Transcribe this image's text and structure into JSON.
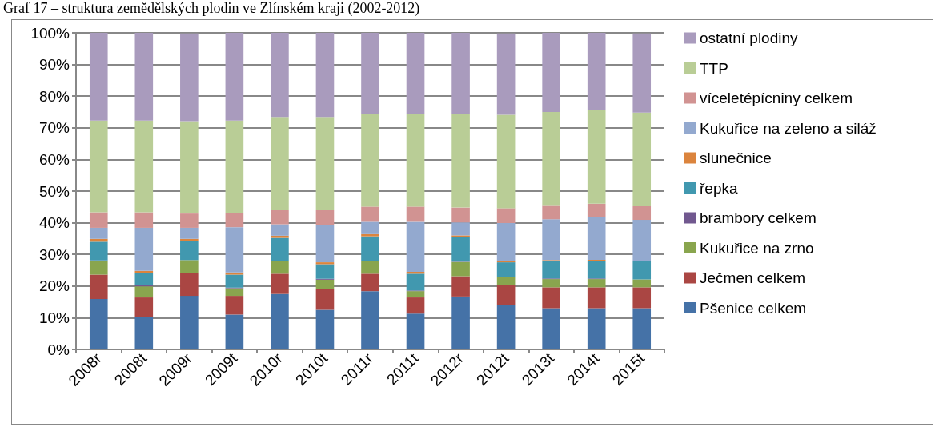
{
  "chart_data": {
    "type": "bar",
    "stacked": true,
    "title": "Graf 17 – struktura zemědělských plodin ve Zlínském kraji (2002-2012)",
    "categories": [
      "2008r",
      "2008t",
      "2009r",
      "2009t",
      "2010r",
      "2010t",
      "2011r",
      "2011t",
      "2012r",
      "2012t",
      "2013t",
      "2014t",
      "2015t"
    ],
    "series": [
      {
        "name": "Pšenice celkem",
        "color": "#4572a7",
        "values": [
          15.9,
          10.2,
          16.9,
          11.0,
          17.5,
          12.5,
          18.4,
          11.3,
          16.7,
          14.1,
          13.0,
          13.0,
          13.0
        ]
      },
      {
        "name": "Ječmen celkem",
        "color": "#aa4643",
        "values": [
          7.7,
          6.2,
          7.2,
          5.9,
          6.4,
          6.6,
          5.5,
          5.1,
          6.4,
          6.2,
          6.6,
          6.6,
          6.6
        ]
      },
      {
        "name": "Kukuřice na zrno",
        "color": "#89a54e",
        "values": [
          4.2,
          3.5,
          4.1,
          2.4,
          3.9,
          2.9,
          3.9,
          2.0,
          4.5,
          2.6,
          2.6,
          2.6,
          2.5
        ]
      },
      {
        "name": "brambory celkem",
        "color": "#71588f",
        "values": [
          0.3,
          0.3,
          null,
          0.2,
          0.2,
          0.3,
          0.2,
          0.2,
          0.1,
          null,
          0.2,
          0.2,
          null
        ]
      },
      {
        "name": "řepka",
        "color": "#4198af",
        "values": [
          5.9,
          3.8,
          6.1,
          4.1,
          7.2,
          4.6,
          7.7,
          5.3,
          7.8,
          4.6,
          5.6,
          5.6,
          5.7
        ]
      },
      {
        "name": "slunečnice",
        "color": "#db843d",
        "values": [
          0.9,
          0.8,
          0.6,
          0.7,
          0.7,
          0.6,
          0.7,
          0.6,
          0.5,
          0.4,
          0.2,
          0.3,
          0.2
        ]
      },
      {
        "name": "Kukuřice na zeleno a siláž",
        "color": "#93a9cf",
        "values": [
          3.5,
          13.6,
          3.5,
          14.3,
          3.6,
          11.9,
          3.9,
          15.8,
          4.1,
          12.0,
          12.9,
          13.4,
          12.9
        ]
      },
      {
        "name": "víceletépícniny celkem",
        "color": "#d19392",
        "values": [
          4.9,
          4.9,
          4.5,
          4.5,
          4.6,
          4.7,
          4.8,
          4.8,
          4.7,
          4.7,
          4.5,
          4.3,
          4.3
        ]
      },
      {
        "name": "TTP",
        "color": "#b9cd96",
        "values": [
          29.0,
          29.0,
          29.2,
          29.2,
          29.3,
          29.3,
          29.4,
          29.4,
          29.5,
          29.5,
          29.4,
          29.5,
          29.6
        ]
      },
      {
        "name": "ostatní plodiny",
        "color": "#a99bbd",
        "values": [
          27.7,
          27.7,
          27.7,
          27.7,
          26.6,
          26.6,
          25.5,
          25.5,
          25.7,
          25.7,
          25.0,
          24.5,
          25.0
        ]
      }
    ],
    "ylim": [
      0,
      100
    ],
    "yticks": [
      {
        "value": 0,
        "label": "0%"
      },
      {
        "value": 10,
        "label": "10%"
      },
      {
        "value": 20,
        "label": "20%"
      },
      {
        "value": 30,
        "label": "30%"
      },
      {
        "value": 40,
        "label": "40%"
      },
      {
        "value": 50,
        "label": "50%"
      },
      {
        "value": 60,
        "label": "60%"
      },
      {
        "value": 70,
        "label": "70%"
      },
      {
        "value": 80,
        "label": "80%"
      },
      {
        "value": 90,
        "label": "90%"
      },
      {
        "value": 100,
        "label": "100%"
      }
    ],
    "grid": "y",
    "legend": "right"
  }
}
